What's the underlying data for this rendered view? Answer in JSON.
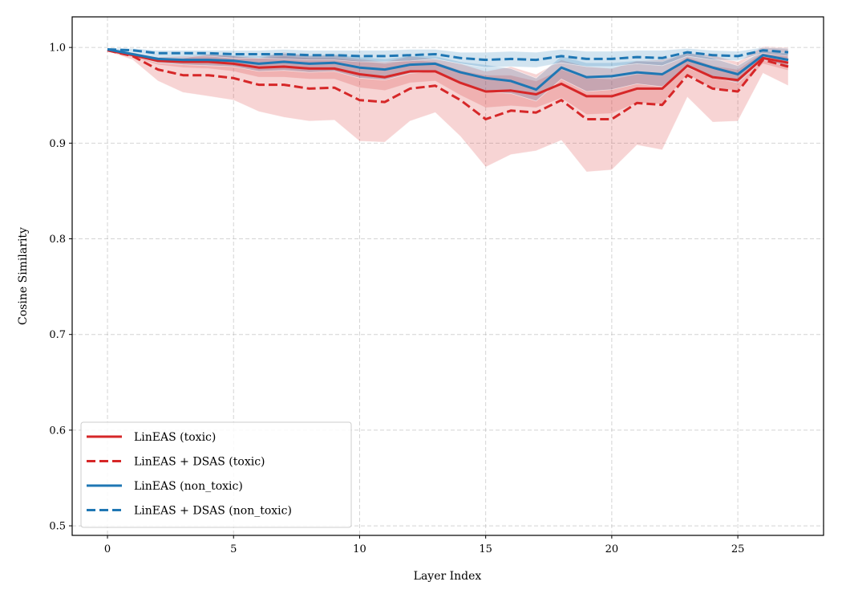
{
  "chart_data": {
    "type": "line",
    "title": "",
    "xlabel": "Layer Index",
    "ylabel": "Cosine Similarity",
    "xlim": [
      -1.4,
      28.4
    ],
    "ylim": [
      0.49,
      1.032
    ],
    "xticks": [
      0,
      5,
      10,
      15,
      20,
      25
    ],
    "yticks": [
      0.5,
      0.6,
      0.7,
      0.8,
      0.9,
      1.0
    ],
    "xtick_labels": [
      "0",
      "5",
      "10",
      "15",
      "20",
      "25"
    ],
    "ytick_labels": [
      "0.5",
      "0.6",
      "0.7",
      "0.8",
      "0.9",
      "1.0"
    ],
    "grid": true,
    "legend_position": "lower-left",
    "x": [
      0,
      1,
      2,
      3,
      4,
      5,
      6,
      7,
      8,
      9,
      10,
      11,
      12,
      13,
      14,
      15,
      16,
      17,
      18,
      19,
      20,
      21,
      22,
      23,
      24,
      25,
      26,
      27
    ],
    "series": [
      {
        "name": "LinEAS (toxic)",
        "color": "#d62728",
        "dash": false,
        "values": [
          0.997,
          0.992,
          0.986,
          0.985,
          0.985,
          0.983,
          0.979,
          0.98,
          0.978,
          0.978,
          0.972,
          0.969,
          0.975,
          0.975,
          0.963,
          0.954,
          0.955,
          0.951,
          0.962,
          0.949,
          0.949,
          0.957,
          0.957,
          0.981,
          0.969,
          0.966,
          0.989,
          0.984
        ],
        "std": [
          0.001,
          0.002,
          0.004,
          0.006,
          0.007,
          0.008,
          0.01,
          0.011,
          0.011,
          0.011,
          0.014,
          0.014,
          0.012,
          0.01,
          0.013,
          0.017,
          0.016,
          0.014,
          0.015,
          0.019,
          0.018,
          0.015,
          0.016,
          0.009,
          0.012,
          0.011,
          0.006,
          0.008
        ]
      },
      {
        "name": "LinEAS + DSAS (toxic)",
        "color": "#d62728",
        "dash": true,
        "values": [
          0.997,
          0.991,
          0.977,
          0.971,
          0.971,
          0.968,
          0.961,
          0.961,
          0.957,
          0.958,
          0.945,
          0.943,
          0.957,
          0.96,
          0.945,
          0.925,
          0.934,
          0.932,
          0.945,
          0.925,
          0.925,
          0.942,
          0.94,
          0.971,
          0.957,
          0.954,
          0.987,
          0.98
        ],
        "std": [
          0.001,
          0.004,
          0.012,
          0.018,
          0.022,
          0.023,
          0.028,
          0.034,
          0.034,
          0.034,
          0.043,
          0.042,
          0.034,
          0.028,
          0.038,
          0.05,
          0.046,
          0.04,
          0.042,
          0.055,
          0.053,
          0.044,
          0.047,
          0.023,
          0.035,
          0.031,
          0.014,
          0.02
        ]
      },
      {
        "name": "LinEAS (non_toxic)",
        "color": "#1f77b4",
        "dash": false,
        "values": [
          0.998,
          0.993,
          0.988,
          0.987,
          0.987,
          0.986,
          0.983,
          0.985,
          0.983,
          0.984,
          0.979,
          0.977,
          0.982,
          0.983,
          0.974,
          0.968,
          0.965,
          0.956,
          0.979,
          0.969,
          0.97,
          0.974,
          0.972,
          0.987,
          0.979,
          0.972,
          0.992,
          0.987
        ],
        "std": [
          0.001,
          0.002,
          0.004,
          0.005,
          0.006,
          0.006,
          0.008,
          0.009,
          0.009,
          0.009,
          0.011,
          0.011,
          0.009,
          0.008,
          0.011,
          0.014,
          0.013,
          0.012,
          0.012,
          0.015,
          0.014,
          0.012,
          0.013,
          0.008,
          0.01,
          0.009,
          0.005,
          0.007
        ]
      },
      {
        "name": "LinEAS + DSAS (non_toxic)",
        "color": "#1f77b4",
        "dash": true,
        "values": [
          0.998,
          0.997,
          0.994,
          0.994,
          0.994,
          0.993,
          0.993,
          0.993,
          0.992,
          0.992,
          0.991,
          0.991,
          0.992,
          0.993,
          0.989,
          0.987,
          0.988,
          0.987,
          0.991,
          0.988,
          0.988,
          0.99,
          0.989,
          0.995,
          0.992,
          0.991,
          0.997,
          0.995
        ],
        "std": [
          0.001,
          0.002,
          0.003,
          0.003,
          0.003,
          0.004,
          0.004,
          0.005,
          0.005,
          0.005,
          0.006,
          0.006,
          0.006,
          0.005,
          0.006,
          0.008,
          0.008,
          0.008,
          0.007,
          0.008,
          0.008,
          0.007,
          0.008,
          0.004,
          0.005,
          0.005,
          0.003,
          0.004
        ]
      }
    ]
  }
}
